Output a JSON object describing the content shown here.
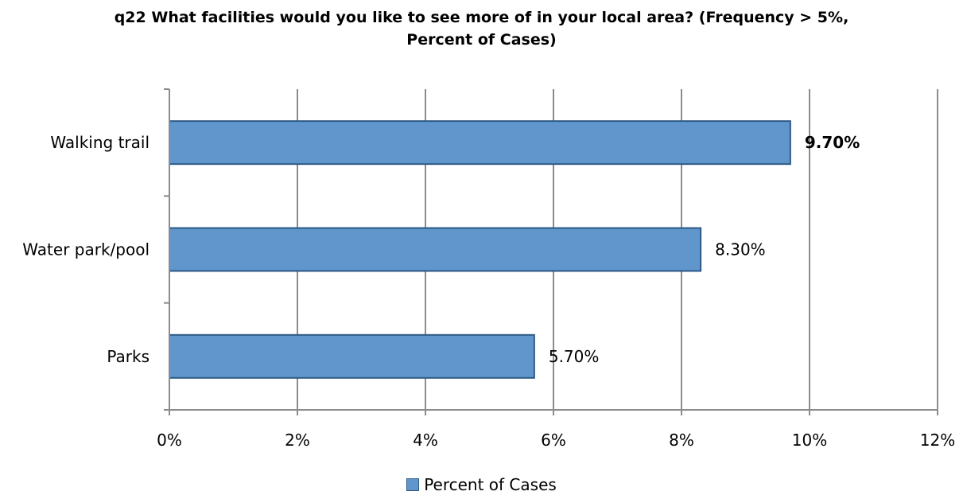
{
  "chart_data": {
    "type": "bar",
    "orientation": "horizontal",
    "title": "q22 What facilities would you like to see more of in your local area? (Frequency > 5%,",
    "subtitle": "Percent of Cases)",
    "categories": [
      "Walking trail",
      "Water park/pool",
      "Parks"
    ],
    "series": [
      {
        "name": "Percent of Cases",
        "values": [
          9.7,
          8.3,
          5.7
        ],
        "labels": [
          "9.70%",
          "8.30%",
          "5.70%"
        ]
      }
    ],
    "highlighted_label_index": 0,
    "xlim": [
      0,
      12
    ],
    "x_ticks": [
      0,
      2,
      4,
      6,
      8,
      10,
      12
    ],
    "x_tick_labels": [
      "0%",
      "2%",
      "4%",
      "6%",
      "8%",
      "10%",
      "12%"
    ],
    "xlabel": "",
    "ylabel": "",
    "grid": "vertical major",
    "legend_position": "bottom",
    "colors": {
      "bar_fill": "#6096cb",
      "bar_stroke": "#2e5a87",
      "grid": "#8c8c8c",
      "axis": "#8c8c8c",
      "text": "#000000"
    }
  }
}
